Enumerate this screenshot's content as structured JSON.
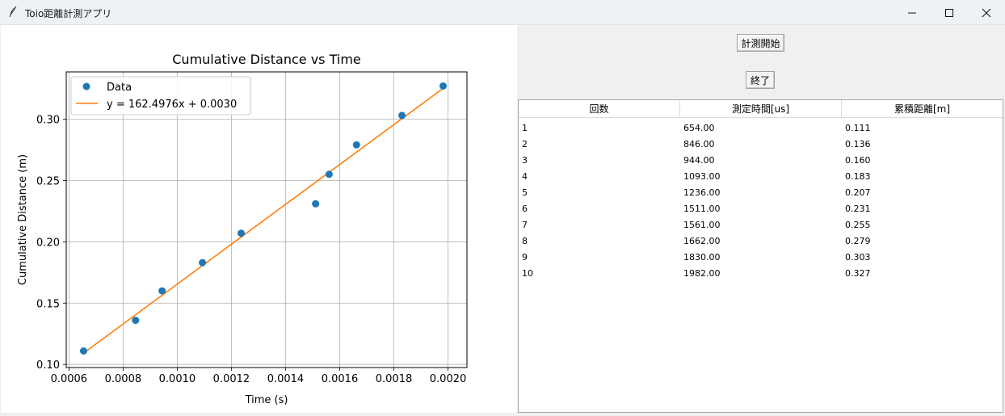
{
  "window": {
    "title": "Toio距離計測アプリ",
    "icon": "feather-icon"
  },
  "controls": {
    "start_label": "計測開始",
    "end_label": "終了"
  },
  "table": {
    "headers": [
      "回数",
      "測定時間[us]",
      "累積距離[m]"
    ],
    "rows": [
      [
        "1",
        "654.00",
        "0.111"
      ],
      [
        "2",
        "846.00",
        "0.136"
      ],
      [
        "3",
        "944.00",
        "0.160"
      ],
      [
        "4",
        "1093.00",
        "0.183"
      ],
      [
        "5",
        "1236.00",
        "0.207"
      ],
      [
        "6",
        "1511.00",
        "0.231"
      ],
      [
        "7",
        "1561.00",
        "0.255"
      ],
      [
        "8",
        "1662.00",
        "0.279"
      ],
      [
        "9",
        "1830.00",
        "0.303"
      ],
      [
        "10",
        "1982.00",
        "0.327"
      ]
    ]
  },
  "chart_data": {
    "type": "scatter",
    "title": "Cumulative Distance vs Time",
    "xlabel": "Time (s)",
    "ylabel": "Cumulative Distance (m)",
    "xlim": [
      0.00059,
      0.00207
    ],
    "ylim": [
      0.0975,
      0.3385
    ],
    "xticks": [
      "0.0006",
      "0.0008",
      "0.0010",
      "0.0012",
      "0.0014",
      "0.0016",
      "0.0018",
      "0.0020"
    ],
    "xtick_values": [
      0.0006,
      0.0008,
      0.001,
      0.0012,
      0.0014,
      0.0016,
      0.0018,
      0.002
    ],
    "yticks": [
      "0.10",
      "0.15",
      "0.20",
      "0.25",
      "0.30"
    ],
    "ytick_values": [
      0.1,
      0.15,
      0.2,
      0.25,
      0.3
    ],
    "grid": true,
    "legend_position": "top-left",
    "series": [
      {
        "name": "Data",
        "kind": "scatter",
        "color": "#1f77b4",
        "x": [
          0.000654,
          0.000846,
          0.000944,
          0.001093,
          0.001236,
          0.001511,
          0.001561,
          0.001662,
          0.00183,
          0.001982
        ],
        "y": [
          0.111,
          0.136,
          0.16,
          0.183,
          0.207,
          0.231,
          0.255,
          0.279,
          0.303,
          0.327
        ]
      },
      {
        "name": "y = 162.4976x + 0.0030",
        "kind": "line",
        "color": "#ff7f0e",
        "slope": 162.4976,
        "intercept": 0.003,
        "x": [
          0.000654,
          0.001982
        ]
      }
    ]
  }
}
